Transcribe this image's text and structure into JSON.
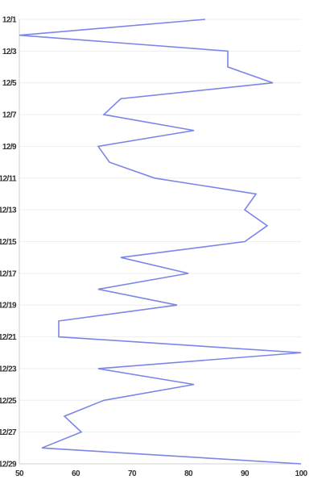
{
  "chart_data": {
    "type": "line",
    "orientation": "vertical",
    "title": "",
    "xlabel": "",
    "ylabel": "",
    "grid": true,
    "legend": "none",
    "line_color": "#7b86e6",
    "xlim": [
      50,
      100
    ],
    "x_ticks": [
      "50",
      "60",
      "70",
      "80",
      "90",
      "100"
    ],
    "y_tick_labels": [
      "12/1",
      "12/3",
      "12/5",
      "12/7",
      "12/9",
      "12/11",
      "12/13",
      "12/15",
      "12/17",
      "12/19",
      "12/21",
      "12/23",
      "12/25",
      "12/27",
      "12/29"
    ],
    "series": [
      {
        "dates": [
          "12/1",
          "12/2",
          "12/3",
          "12/4",
          "12/5",
          "12/6",
          "12/7",
          "12/8",
          "12/9",
          "12/10",
          "12/11",
          "12/12",
          "12/13",
          "12/14",
          "12/15",
          "12/16",
          "12/17",
          "12/18",
          "12/19",
          "12/20",
          "12/21",
          "12/22",
          "12/23",
          "12/24",
          "12/25",
          "12/26",
          "12/27",
          "12/28",
          "12/29"
        ],
        "values": [
          83,
          50,
          87,
          87,
          95,
          68,
          65,
          81,
          64,
          66,
          74,
          92,
          90,
          94,
          90,
          68,
          80,
          64,
          78,
          57,
          57,
          100,
          64,
          81,
          65,
          58,
          61,
          54,
          100
        ]
      }
    ]
  }
}
